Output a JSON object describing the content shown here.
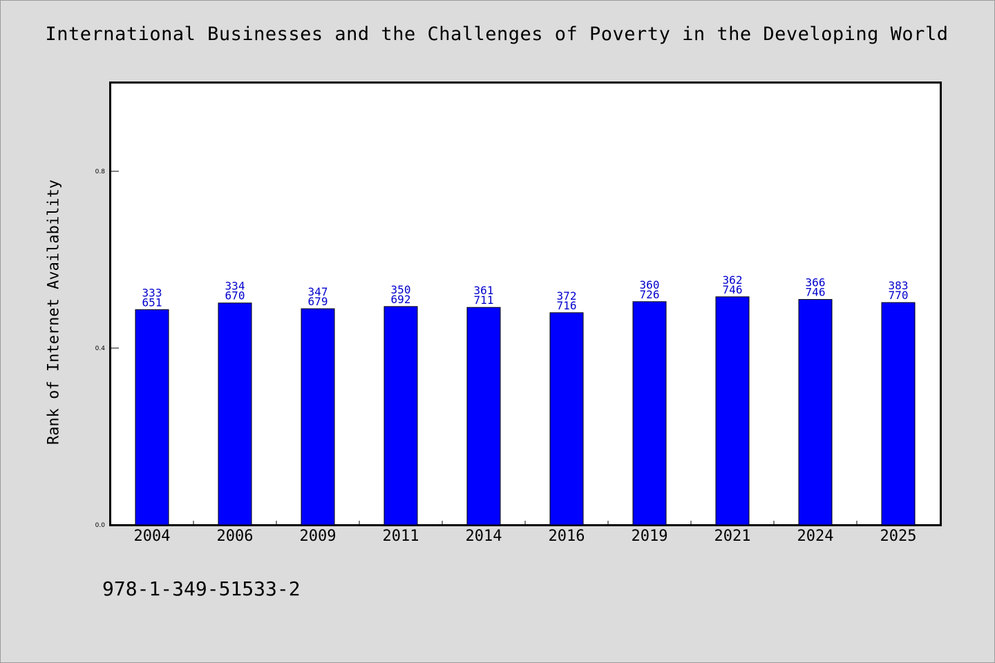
{
  "chart_data": {
    "type": "bar",
    "title": "International Businesses and the Challenges of Poverty in the Developing World",
    "ylabel": "Rank of Internet Availability",
    "xlabel": "",
    "categories": [
      "2004",
      "2006",
      "2009",
      "2011",
      "2014",
      "2016",
      "2019",
      "2021",
      "2024",
      "2025"
    ],
    "values": [
      0.487,
      0.502,
      0.489,
      0.494,
      0.492,
      0.48,
      0.505,
      0.516,
      0.51,
      0.503
    ],
    "bar_labels_top": [
      "333",
      "334",
      "347",
      "350",
      "361",
      "372",
      "360",
      "362",
      "366",
      "383"
    ],
    "bar_labels_bottom": [
      "651",
      "670",
      "679",
      "692",
      "711",
      "716",
      "726",
      "746",
      "746",
      "770"
    ],
    "yticks": [
      0.0,
      0.4,
      0.8
    ],
    "ytick_labels": [
      "0.0",
      "0.4",
      "0.8"
    ],
    "ylim": [
      0,
      1.0
    ],
    "grid": false,
    "legend": "none",
    "bar_color": "#0000ff",
    "label_color": "#0000cc"
  },
  "footer": {
    "isbn": "978-1-349-51533-2"
  },
  "colors": {
    "background": "#dcdcdc",
    "plot_background": "#ffffff",
    "axis": "#000000"
  }
}
